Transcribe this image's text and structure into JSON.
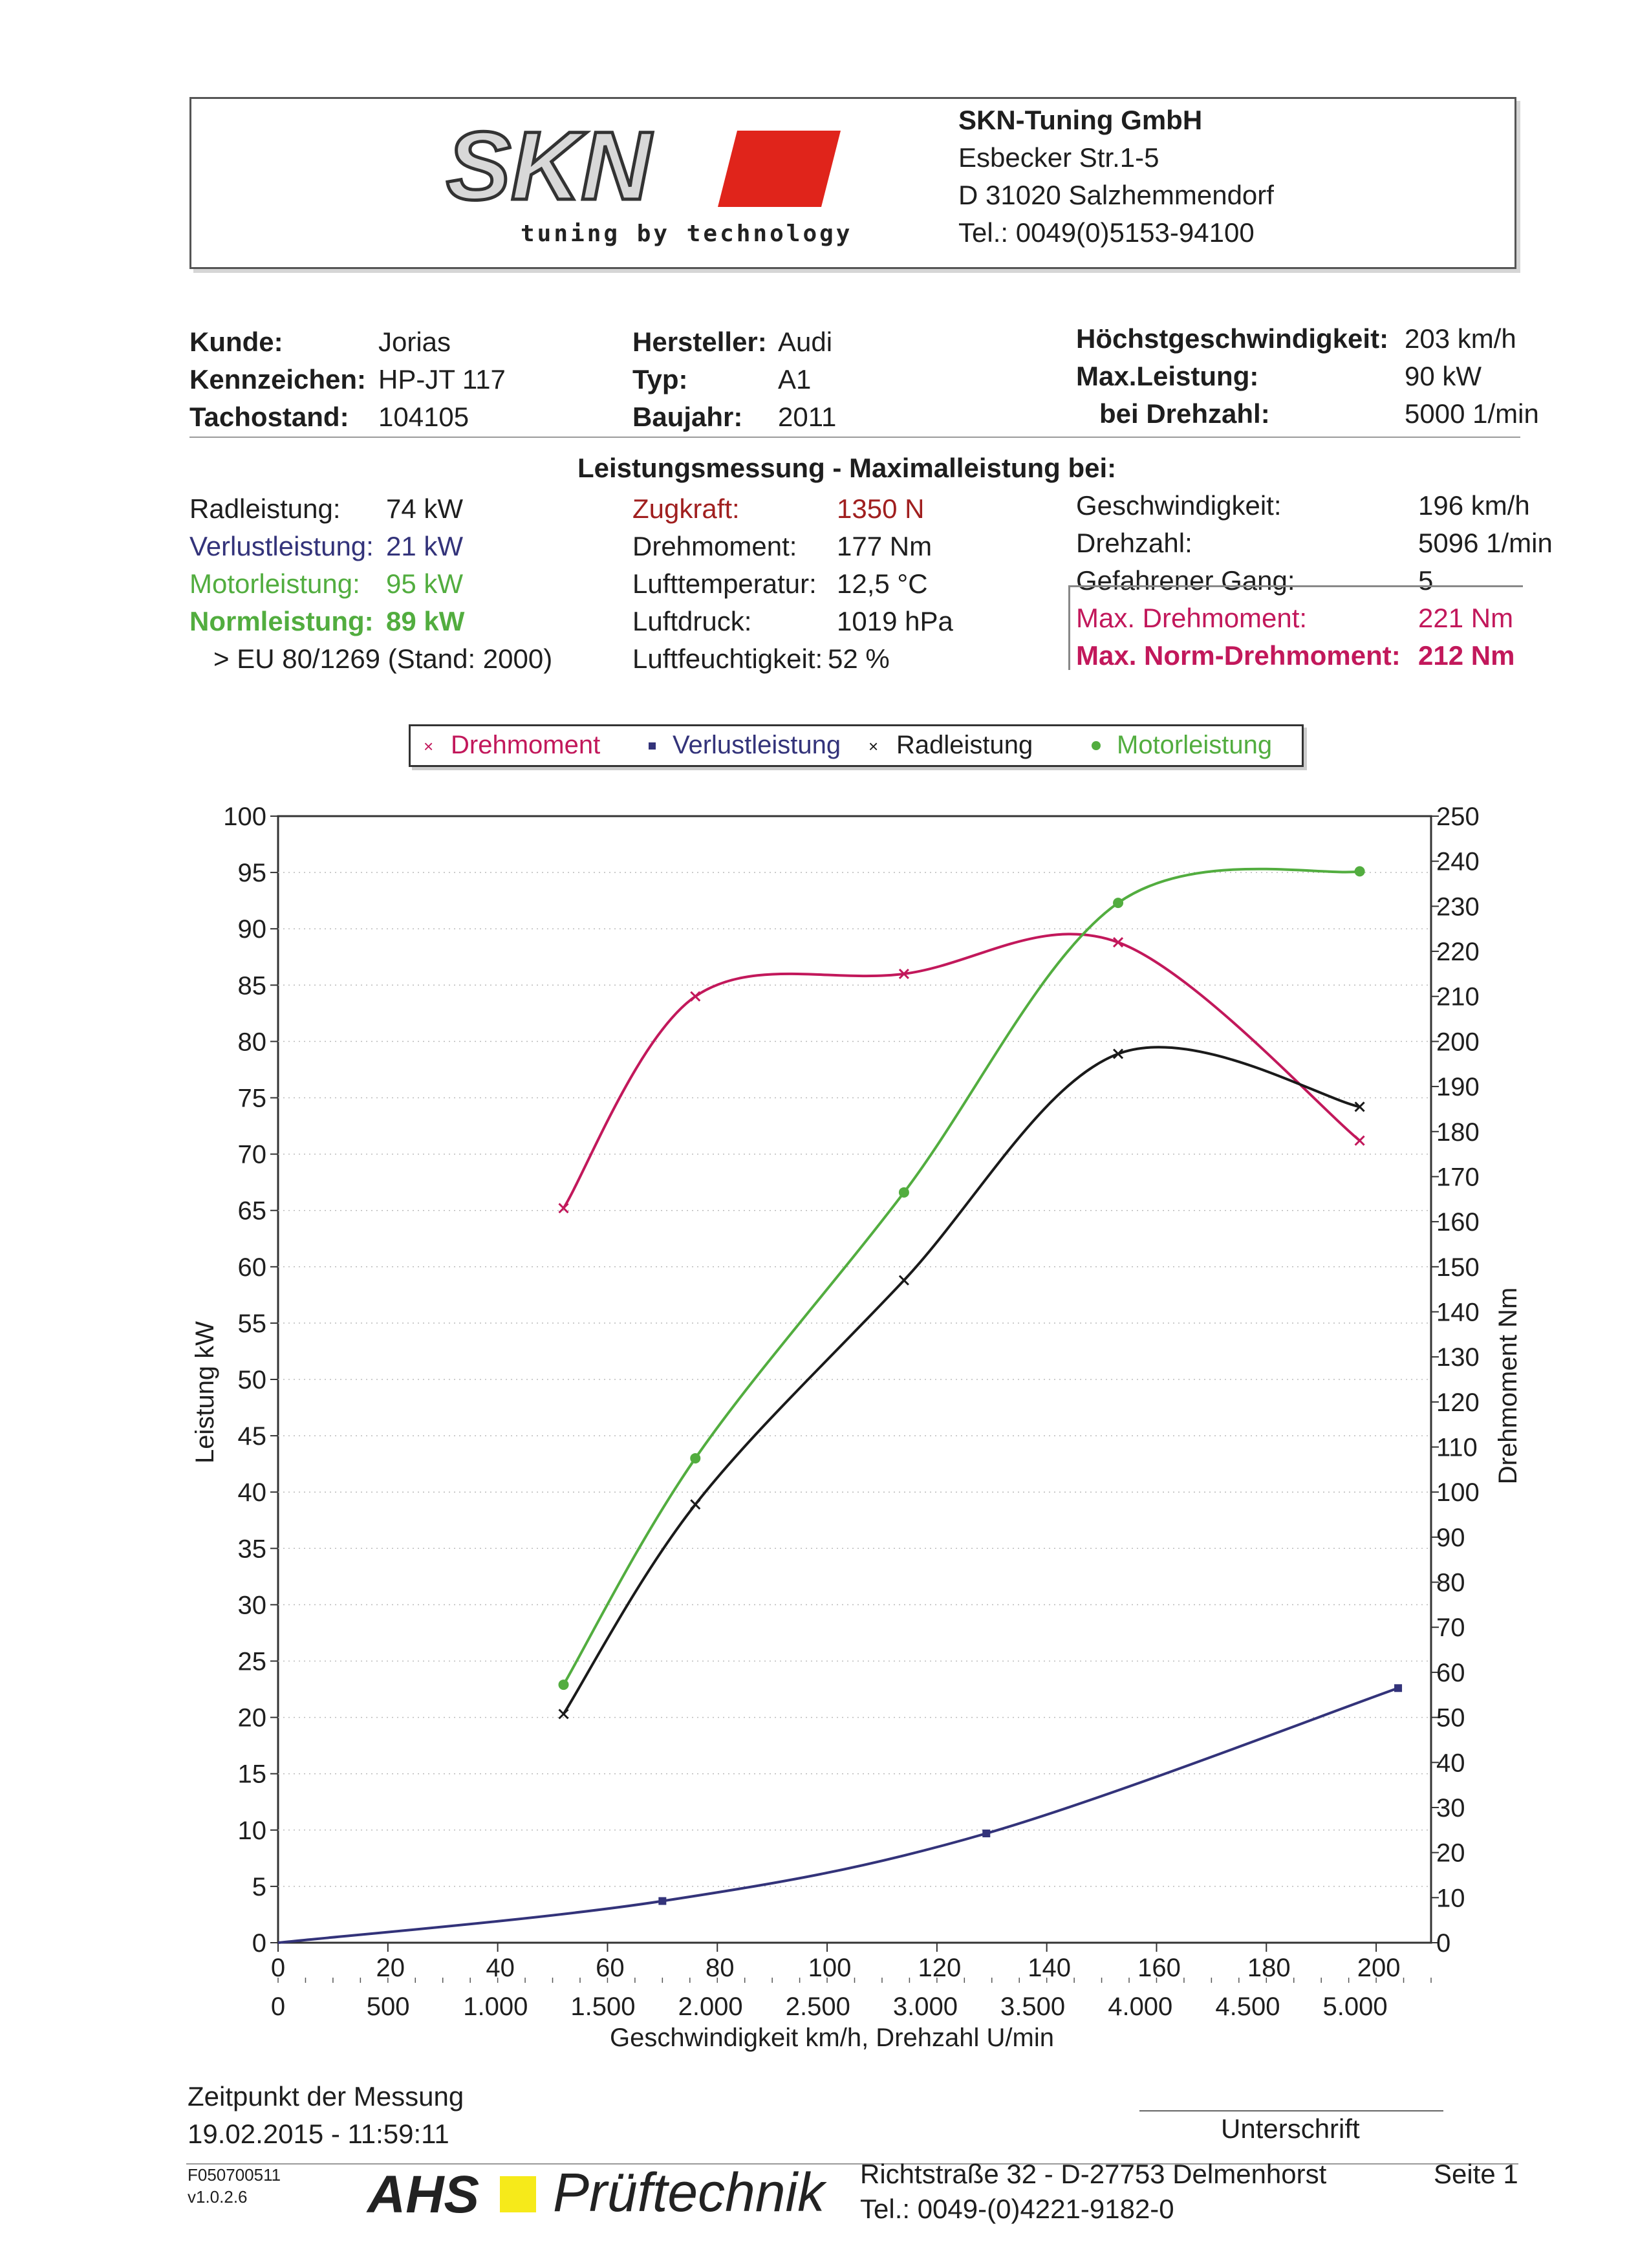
{
  "header": {
    "logo_text": "SKN",
    "logo_tagline": "tuning by technology",
    "company_name": "SKN-Tuning GmbH",
    "company_street": "Esbecker Str.1-5",
    "company_city": "D 31020 Salzhemmendorf",
    "company_tel": "Tel.: 0049(0)5153-94100"
  },
  "vehicle": {
    "kunde_label": "Kunde:",
    "kunde": "Jorias",
    "kennzeichen_label": "Kennzeichen:",
    "kennzeichen": "HP-JT 117",
    "tachostand_label": "Tachostand:",
    "tachostand": "104105",
    "hersteller_label": "Hersteller:",
    "hersteller": "Audi",
    "typ_label": "Typ:",
    "typ": "A1",
    "baujahr_label": "Baujahr:",
    "baujahr": "2011",
    "vmax_label": "Höchstgeschwindigkeit:",
    "vmax": "203 km/h",
    "maxleistung_label": "Max.Leistung:",
    "maxleistung": "90 kW",
    "bei_drehzahl_label": "bei Drehzahl:",
    "bei_drehzahl": "5000 1/min"
  },
  "measurement": {
    "title": "Leistungsmessung - Maximalleistung bei:",
    "radleistung_label": "Radleistung:",
    "radleistung": "74 kW",
    "verlust_label": "Verlustleistung:",
    "verlust": "21 kW",
    "motor_label": "Motorleistung:",
    "motor": "95 kW",
    "norm_label": "Normleistung:",
    "norm": "89 kW",
    "norm_standard": "> EU 80/1269 (Stand: 2000)",
    "zugkraft_label": "Zugkraft:",
    "zugkraft": "1350 N",
    "drehmoment_label": "Drehmoment:",
    "drehmoment": "177 Nm",
    "lufttemp_label": "Lufttemperatur:",
    "lufttemp": "12,5 °C",
    "luftdruck_label": "Luftdruck:",
    "luftdruck": "1019 hPa",
    "luftfeucht_label": "Luftfeuchtigkeit:",
    "luftfeucht": "52 %",
    "geschw_label": "Geschwindigkeit:",
    "geschw": "196 km/h",
    "drehzahl_label": "Drehzahl:",
    "drehzahl": "5096 1/min",
    "gang_label": "Gefahrener Gang:",
    "gang": "5",
    "max_dm_label": "Max. Drehmoment:",
    "max_dm": "221 Nm",
    "max_norm_dm_label": "Max. Norm-Drehmoment:",
    "max_norm_dm": "212 Nm"
  },
  "legend": {
    "drehmoment": "Drehmoment",
    "verlust": "Verlustleistung",
    "rad": "Radleistung",
    "motor": "Motorleistung"
  },
  "chart_data": {
    "type": "line",
    "ylabel": "Leistung kW",
    "y2label": "Drehmoment Nm",
    "xlabel": "Geschwindigkeit km/h, Drehzahl U/min",
    "ylim": [
      0,
      100
    ],
    "y2lim": [
      0,
      250
    ],
    "xlim_kmh": [
      0,
      210
    ],
    "y_ticks": [
      0,
      5,
      10,
      15,
      20,
      25,
      30,
      35,
      40,
      45,
      50,
      55,
      60,
      65,
      70,
      75,
      80,
      85,
      90,
      95,
      100
    ],
    "y2_ticks": [
      0,
      10,
      20,
      30,
      40,
      50,
      60,
      70,
      80,
      90,
      100,
      110,
      120,
      130,
      140,
      150,
      160,
      170,
      180,
      190,
      200,
      210,
      220,
      230,
      240,
      250
    ],
    "x_ticks_kmh": [
      "0",
      "20",
      "40",
      "60",
      "80",
      "100",
      "120",
      "140",
      "160",
      "180",
      "200"
    ],
    "x_ticks_rpm": [
      "0",
      "500",
      "1.000",
      "1.500",
      "2.000",
      "2.500",
      "3.000",
      "3.500",
      "4.000",
      "4.500",
      "5.000"
    ],
    "grid": true,
    "series": [
      {
        "name": "Drehmoment",
        "axis": "right",
        "color": "#c2185b",
        "marker": "x",
        "x": [
          52,
          76,
          114,
          153,
          197
        ],
        "y": [
          163,
          210,
          215,
          222,
          178
        ]
      },
      {
        "name": "Verlustleistung",
        "axis": "left",
        "color": "#33337a",
        "marker": "square",
        "x": [
          0,
          70,
          129,
          204
        ],
        "y": [
          0,
          3.7,
          9.7,
          22.6
        ]
      },
      {
        "name": "Radleistung",
        "axis": "left",
        "color": "#1a1a1a",
        "marker": "x",
        "x": [
          52,
          76,
          114,
          153,
          197
        ],
        "y": [
          20.3,
          38.9,
          58.8,
          78.9,
          74.2
        ]
      },
      {
        "name": "Motorleistung",
        "axis": "left",
        "color": "#52ad3f",
        "marker": "dot",
        "x": [
          52,
          76,
          114,
          153,
          197
        ],
        "y": [
          22.9,
          43.0,
          66.6,
          92.3,
          95.1
        ]
      }
    ]
  },
  "footer": {
    "zeitpunkt_label": "Zeitpunkt der Messung",
    "zeitpunkt": "19.02.2015 - 11:59:11",
    "unterschrift": "Unterschrift",
    "form_id": "F050700511",
    "version": "v1.0.2.6",
    "ahs": "AHS",
    "prueftechnik": "Prüftechnik",
    "address": "Richtstraße 32 - D-27753 Delmenhorst",
    "tel": "Tel.: 0049-(0)4221-9182-0",
    "page": "Seite 1"
  }
}
